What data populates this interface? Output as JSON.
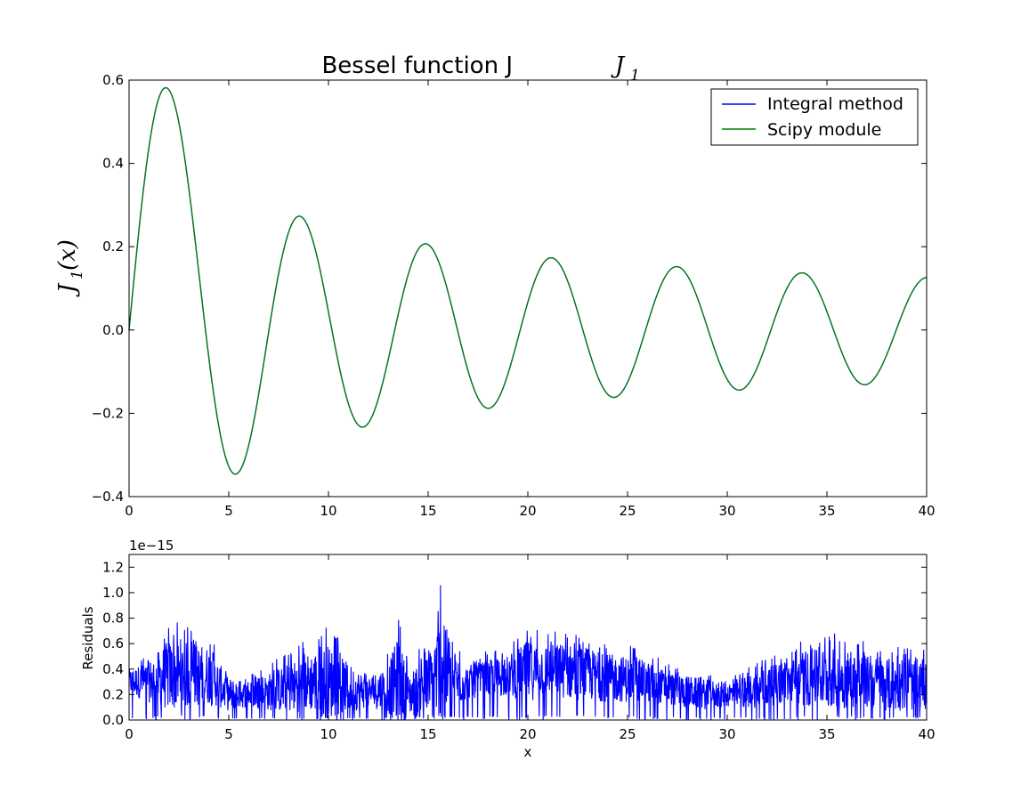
{
  "chart_data": [
    {
      "type": "line",
      "title": "Bessel function J",
      "title_subscript": "1",
      "ylabel": "J",
      "ylabel_subscript": "1",
      "ylabel_suffix": "(x)",
      "xlim": [
        0,
        40
      ],
      "ylim": [
        -0.4,
        0.6
      ],
      "xticks": [
        "0",
        "5",
        "10",
        "15",
        "20",
        "25",
        "30",
        "35",
        "40"
      ],
      "yticks": [
        "−0.4",
        "−0.2",
        "0.0",
        "0.2",
        "0.4",
        "0.6"
      ],
      "grid": false,
      "legend_position": "top-right",
      "x_range": [
        0,
        40
      ],
      "series": [
        {
          "name": "Integral method",
          "color": "#0000ff",
          "function": "bessel_j1"
        },
        {
          "name": "Scipy module",
          "color": "#008000",
          "function": "bessel_j1"
        }
      ]
    },
    {
      "type": "line",
      "xlabel": "x",
      "ylabel": "Residuals",
      "scale_note": "1e−15",
      "xlim": [
        0,
        40
      ],
      "ylim": [
        0.0,
        1.3
      ],
      "xticks": [
        "0",
        "5",
        "10",
        "15",
        "20",
        "25",
        "30",
        "35",
        "40"
      ],
      "yticks": [
        "0.0",
        "0.2",
        "0.4",
        "0.6",
        "0.8",
        "1.0",
        "1.2"
      ],
      "grid": false,
      "series": [
        {
          "name": "Residuals",
          "color": "#0000ff",
          "x": [
            0,
            1,
            2,
            3,
            4,
            5,
            6,
            7,
            8,
            9,
            10,
            11,
            12,
            13,
            13.5,
            14,
            15,
            15.5,
            15.8,
            16,
            17,
            18,
            19,
            20,
            21,
            22,
            23,
            24,
            25,
            26,
            27,
            28,
            29,
            30,
            31,
            32,
            33,
            34,
            35,
            36,
            37,
            38,
            39,
            40
          ],
          "envelope": [
            0.45,
            0.55,
            0.78,
            0.75,
            0.7,
            0.4,
            0.35,
            0.45,
            0.55,
            0.65,
            0.75,
            0.55,
            0.4,
            0.55,
            0.85,
            0.45,
            0.65,
            0.95,
            1.3,
            0.7,
            0.5,
            0.55,
            0.6,
            0.75,
            0.7,
            0.72,
            0.68,
            0.62,
            0.6,
            0.55,
            0.45,
            0.42,
            0.38,
            0.35,
            0.42,
            0.5,
            0.55,
            0.65,
            0.7,
            0.68,
            0.62,
            0.6,
            0.58,
            0.55
          ],
          "baseline": [
            0.3,
            0.3,
            0.35,
            0.35,
            0.35,
            0.2,
            0.2,
            0.22,
            0.25,
            0.3,
            0.3,
            0.25,
            0.22,
            0.25,
            0.3,
            0.2,
            0.25,
            0.4,
            0.5,
            0.3,
            0.3,
            0.32,
            0.35,
            0.38,
            0.4,
            0.38,
            0.36,
            0.33,
            0.32,
            0.3,
            0.25,
            0.22,
            0.2,
            0.2,
            0.22,
            0.26,
            0.3,
            0.32,
            0.33,
            0.32,
            0.3,
            0.28,
            0.27,
            0.27
          ]
        }
      ]
    }
  ]
}
